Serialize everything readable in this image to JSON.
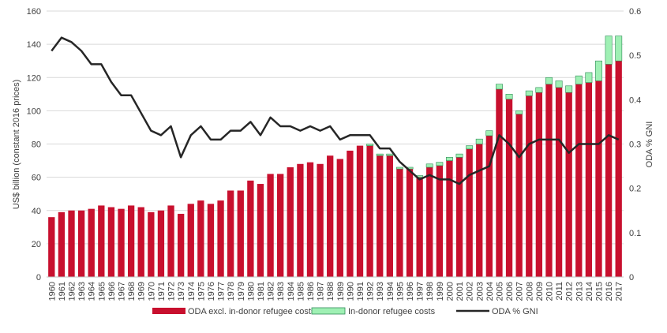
{
  "chart_data": {
    "type": "bar",
    "ylabel": "US$ billion (constant 2016 prices)",
    "y2label": "ODA % GNI",
    "ylim": [
      0,
      160
    ],
    "yticks": [
      0,
      20,
      40,
      60,
      80,
      100,
      120,
      140,
      160
    ],
    "y2lim": [
      0,
      0.6
    ],
    "y2ticks": [
      "0",
      "0.1",
      "0.2",
      "0.3",
      "0.4",
      "0.5",
      "0.6"
    ],
    "grid": true,
    "legend_position": "bottom",
    "categories": [
      "1960",
      "1961",
      "1962",
      "1963",
      "1964",
      "1965",
      "1966",
      "1967",
      "1968",
      "1969",
      "1970",
      "1971",
      "1972",
      "1973",
      "1974",
      "1975",
      "1976",
      "1977",
      "1978",
      "1979",
      "1980",
      "1981",
      "1982",
      "1983",
      "1984",
      "1985",
      "1986",
      "1987",
      "1988",
      "1989",
      "1990",
      "1991",
      "1992",
      "1993",
      "1994",
      "1995",
      "1996",
      "1997",
      "1998",
      "1999",
      "2000",
      "2001",
      "2002",
      "2003",
      "2004",
      "2005",
      "2006",
      "2007",
      "2008",
      "2009",
      "2010",
      "2011",
      "2012",
      "2013",
      "2014",
      "2015",
      "2016",
      "2017"
    ],
    "series": [
      {
        "name": "ODA excl. in-donor refugee costs",
        "kind": "bar",
        "color": "#c8102e",
        "values": [
          36,
          39,
          40,
          40,
          41,
          43,
          42,
          41,
          43,
          42,
          39,
          40,
          43,
          38,
          44,
          46,
          44,
          46,
          52,
          52,
          58,
          56,
          62,
          62,
          66,
          68,
          69,
          68,
          73,
          71,
          76,
          79,
          79,
          73,
          73,
          65,
          65,
          60,
          66,
          67,
          70,
          72,
          77,
          80,
          85,
          113,
          107,
          98,
          109,
          111,
          116,
          114,
          111,
          116,
          117,
          118,
          128,
          130
        ],
        "extra_values": [
          0,
          0,
          0,
          0,
          0,
          0,
          0,
          0,
          0,
          0,
          0,
          0,
          0,
          0,
          0,
          0,
          0,
          0,
          0,
          0,
          0,
          0,
          0,
          0,
          0,
          0,
          0,
          0,
          0,
          0,
          0,
          0,
          1,
          1,
          1,
          1,
          1,
          1,
          2,
          2,
          2,
          2,
          2,
          3,
          3,
          3,
          3,
          2,
          3,
          3,
          4,
          4,
          4,
          5,
          6,
          12,
          17,
          15
        ]
      },
      {
        "name": "In-donor refugee costs",
        "kind": "bar-stack",
        "color": "#9ff0b4",
        "values": [
          0,
          0,
          0,
          0,
          0,
          0,
          0,
          0,
          0,
          0,
          0,
          0,
          0,
          0,
          0,
          0,
          0,
          0,
          0,
          0,
          0,
          0,
          0,
          0,
          0,
          0,
          0,
          0,
          0,
          0,
          0,
          0,
          1,
          1,
          1,
          1,
          1,
          1,
          2,
          2,
          2,
          2,
          2,
          3,
          3,
          3,
          3,
          2,
          3,
          3,
          4,
          4,
          4,
          5,
          6,
          12,
          17,
          15
        ]
      },
      {
        "name": "ODA % GNI",
        "kind": "line",
        "axis": "right",
        "color": "#262626",
        "values": [
          0.51,
          0.54,
          0.53,
          0.51,
          0.48,
          0.48,
          0.44,
          0.41,
          0.41,
          0.37,
          0.33,
          0.32,
          0.34,
          0.27,
          0.32,
          0.34,
          0.31,
          0.31,
          0.33,
          0.33,
          0.35,
          0.32,
          0.36,
          0.34,
          0.34,
          0.33,
          0.34,
          0.33,
          0.34,
          0.31,
          0.32,
          0.32,
          0.32,
          0.29,
          0.29,
          0.26,
          0.24,
          0.22,
          0.23,
          0.22,
          0.22,
          0.21,
          0.23,
          0.24,
          0.25,
          0.32,
          0.3,
          0.27,
          0.3,
          0.31,
          0.31,
          0.31,
          0.28,
          0.3,
          0.3,
          0.3,
          0.32,
          0.31
        ]
      }
    ]
  }
}
